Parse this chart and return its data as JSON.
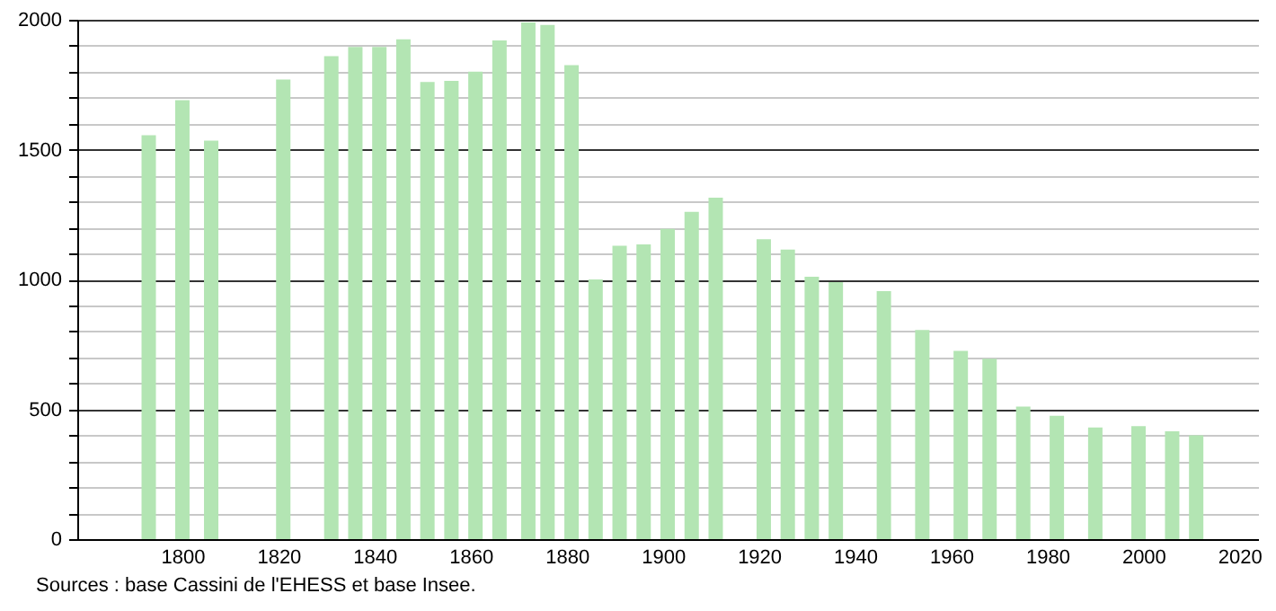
{
  "chart_data": {
    "type": "bar",
    "x": [
      1793,
      1800,
      1806,
      1821,
      1831,
      1836,
      1841,
      1846,
      1851,
      1856,
      1861,
      1866,
      1872,
      1876,
      1881,
      1886,
      1891,
      1896,
      1901,
      1906,
      1911,
      1921,
      1926,
      1931,
      1936,
      1946,
      1954,
      1962,
      1968,
      1975,
      1982,
      1990,
      1999,
      2006,
      2011
    ],
    "values": [
      1555,
      1690,
      1535,
      1770,
      1860,
      1895,
      1895,
      1925,
      1760,
      1765,
      1800,
      1920,
      1990,
      1980,
      1825,
      1000,
      1130,
      1135,
      1195,
      1260,
      1315,
      1155,
      1115,
      1010,
      990,
      955,
      805,
      725,
      695,
      510,
      475,
      430,
      435,
      415,
      400
    ],
    "color": "#b3e5b3",
    "xlim": [
      1780,
      2022
    ],
    "xticks": [
      1800,
      1820,
      1840,
      1860,
      1880,
      1900,
      1920,
      1940,
      1960,
      1980,
      2000,
      2020
    ],
    "ylim": [
      0,
      2000
    ],
    "yticks": [
      0,
      {
        "value": 100,
        "label": null
      },
      {
        "value": 200,
        "label": null
      },
      {
        "value": 300,
        "label": null
      },
      {
        "value": 400,
        "label": null
      },
      500,
      {
        "value": 600,
        "label": null
      },
      {
        "value": 700,
        "label": null
      },
      {
        "value": 800,
        "label": null
      },
      {
        "value": 900,
        "label": null
      },
      1000,
      {
        "value": 1100,
        "label": null
      },
      {
        "value": 1200,
        "label": null
      },
      {
        "value": 1300,
        "label": null
      },
      {
        "value": 1400,
        "label": null
      },
      1500,
      {
        "value": 1600,
        "label": null
      },
      {
        "value": 1700,
        "label": null
      },
      {
        "value": 1800,
        "label": null
      },
      {
        "value": 1900,
        "label": null
      },
      2000
    ],
    "grid": "y",
    "annotations": [
      "Sources : base Cassini de l'EHESS et base Insee."
    ]
  }
}
